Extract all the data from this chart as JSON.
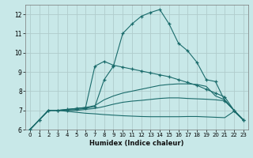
{
  "title": "",
  "xlabel": "Humidex (Indice chaleur)",
  "bg_color": "#c8e8e8",
  "grid_color": "#b0cccc",
  "line_color": "#1a6b6b",
  "xlim": [
    -0.5,
    23.5
  ],
  "ylim": [
    6,
    12.5
  ],
  "yticks": [
    6,
    7,
    8,
    9,
    10,
    11,
    12
  ],
  "xticks": [
    0,
    1,
    2,
    3,
    4,
    5,
    6,
    7,
    8,
    9,
    10,
    11,
    12,
    13,
    14,
    15,
    16,
    17,
    18,
    19,
    20,
    21,
    22,
    23
  ],
  "lines": [
    {
      "x": [
        0,
        1,
        2,
        3,
        4,
        5,
        6,
        7,
        8,
        9,
        10,
        11,
        12,
        13,
        14,
        15,
        16,
        17,
        18,
        19,
        20,
        21,
        22,
        23
      ],
      "y": [
        6.0,
        6.5,
        7.0,
        7.0,
        7.0,
        7.05,
        7.1,
        7.2,
        8.6,
        9.3,
        11.0,
        11.5,
        11.9,
        12.1,
        12.25,
        11.5,
        10.5,
        10.1,
        9.5,
        8.6,
        8.5,
        7.5,
        7.0,
        6.5
      ],
      "marker": true
    },
    {
      "x": [
        0,
        1,
        2,
        3,
        4,
        5,
        6,
        7,
        8,
        9,
        10,
        11,
        12,
        13,
        14,
        15,
        16,
        17,
        18,
        19,
        20,
        21,
        22,
        23
      ],
      "y": [
        6.0,
        6.5,
        7.0,
        7.0,
        7.05,
        7.1,
        7.15,
        9.3,
        9.55,
        9.35,
        9.25,
        9.15,
        9.05,
        8.95,
        8.85,
        8.75,
        8.6,
        8.45,
        8.3,
        8.1,
        7.9,
        7.7,
        7.0,
        6.5
      ],
      "marker": true
    },
    {
      "x": [
        0,
        1,
        2,
        3,
        4,
        5,
        6,
        7,
        8,
        9,
        10,
        11,
        12,
        13,
        14,
        15,
        16,
        17,
        18,
        19,
        20,
        21,
        22,
        23
      ],
      "y": [
        6.0,
        6.5,
        7.0,
        7.0,
        7.05,
        7.1,
        7.15,
        7.25,
        7.55,
        7.75,
        7.9,
        8.0,
        8.1,
        8.2,
        8.3,
        8.35,
        8.38,
        8.38,
        8.35,
        8.25,
        7.75,
        7.55,
        7.0,
        6.5
      ],
      "marker": false
    },
    {
      "x": [
        0,
        1,
        2,
        3,
        4,
        5,
        6,
        7,
        8,
        9,
        10,
        11,
        12,
        13,
        14,
        15,
        16,
        17,
        18,
        19,
        20,
        21,
        22,
        23
      ],
      "y": [
        6.0,
        6.5,
        7.0,
        7.0,
        7.0,
        7.0,
        7.05,
        7.1,
        7.2,
        7.32,
        7.42,
        7.48,
        7.52,
        7.57,
        7.62,
        7.65,
        7.65,
        7.62,
        7.6,
        7.58,
        7.55,
        7.5,
        7.0,
        6.5
      ],
      "marker": false
    },
    {
      "x": [
        0,
        1,
        2,
        3,
        4,
        5,
        6,
        7,
        8,
        9,
        10,
        11,
        12,
        13,
        14,
        15,
        16,
        17,
        18,
        19,
        20,
        21,
        22,
        23
      ],
      "y": [
        6.0,
        6.5,
        7.0,
        7.0,
        6.95,
        6.9,
        6.85,
        6.82,
        6.78,
        6.75,
        6.72,
        6.7,
        6.68,
        6.67,
        6.67,
        6.67,
        6.67,
        6.68,
        6.68,
        6.66,
        6.64,
        6.62,
        6.95,
        6.5
      ],
      "marker": false
    }
  ]
}
